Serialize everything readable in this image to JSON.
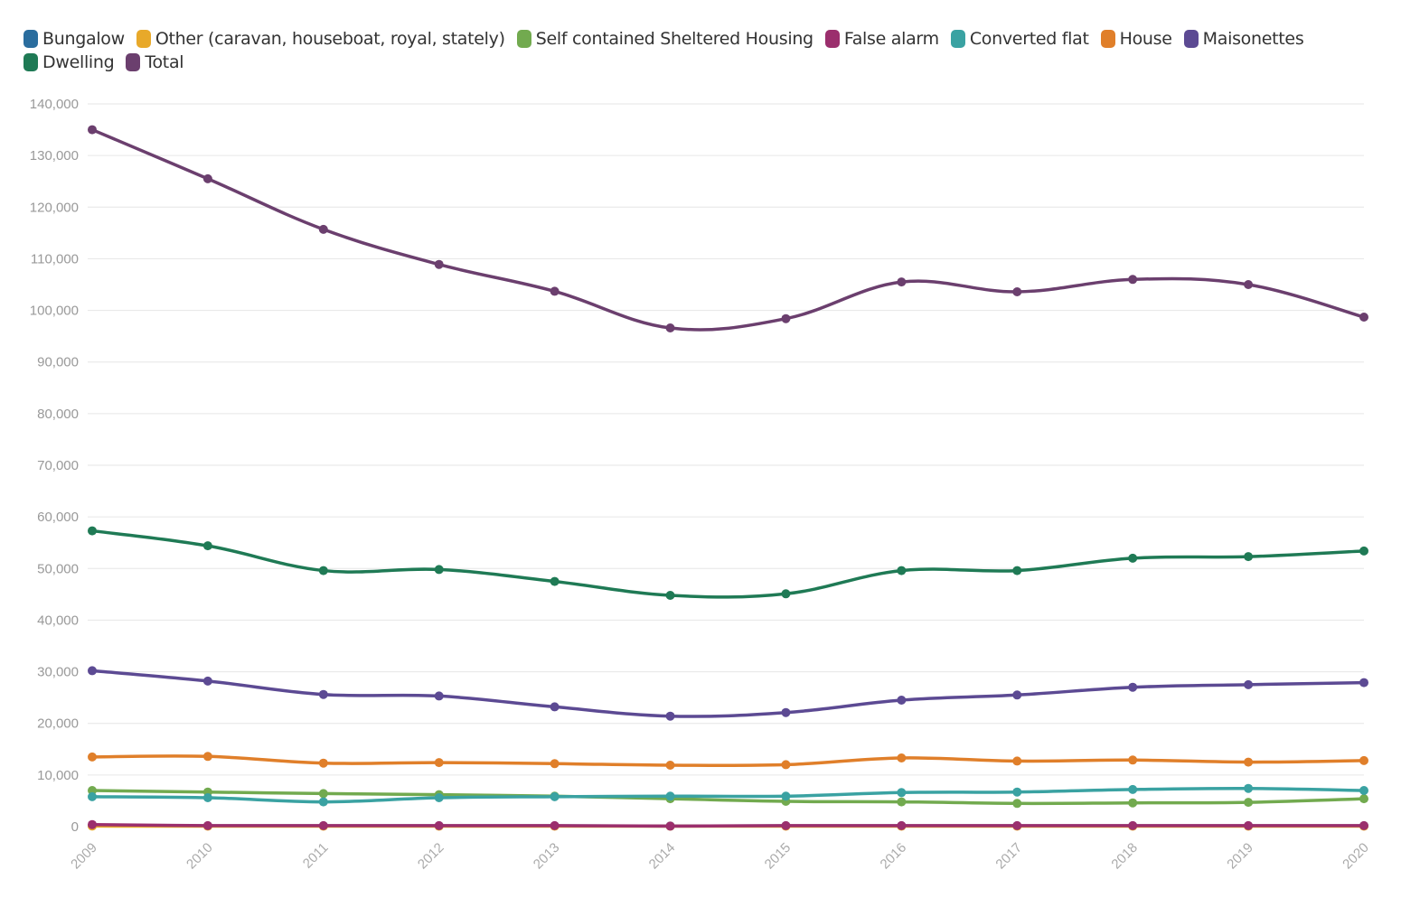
{
  "chart_data": {
    "type": "line",
    "title": "",
    "xlabel": "",
    "ylabel": "",
    "x": [
      "2009",
      "2010",
      "2011",
      "2012",
      "2013",
      "2014",
      "2015",
      "2016",
      "2017",
      "2018",
      "2019",
      "2020"
    ],
    "ylim": [
      0,
      140000
    ],
    "yticks": [
      0,
      10000,
      20000,
      30000,
      40000,
      50000,
      60000,
      70000,
      80000,
      90000,
      100000,
      110000,
      120000,
      130000,
      140000
    ],
    "ytick_labels": [
      "0",
      "10,000",
      "20,000",
      "30,000",
      "40,000",
      "50,000",
      "60,000",
      "70,000",
      "80,000",
      "90,000",
      "100,000",
      "110,000",
      "120,000",
      "130,000",
      "140,000"
    ],
    "grid": true,
    "legend_position": "top-left",
    "series": [
      {
        "name": "Bungalow",
        "color": "#2a6d9e",
        "values": [
          200,
          150,
          150,
          150,
          150,
          120,
          150,
          150,
          150,
          150,
          150,
          150
        ]
      },
      {
        "name": "Other (caravan, houseboat, royal, stately)",
        "color": "#e8a92a",
        "values": [
          100,
          80,
          80,
          80,
          80,
          80,
          80,
          80,
          80,
          80,
          80,
          80
        ]
      },
      {
        "name": "Self contained Sheltered Housing",
        "color": "#72aa4f",
        "values": [
          7000,
          6700,
          6400,
          6200,
          5900,
          5400,
          4900,
          4800,
          4500,
          4600,
          4700,
          5400
        ]
      },
      {
        "name": "False alarm",
        "color": "#9b2f6d",
        "values": [
          400,
          200,
          200,
          200,
          200,
          100,
          200,
          200,
          200,
          200,
          200,
          200
        ]
      },
      {
        "name": "Converted flat",
        "color": "#3aa2a2",
        "values": [
          5800,
          5600,
          4800,
          5600,
          5800,
          5900,
          5900,
          6600,
          6700,
          7200,
          7400,
          7000
        ]
      },
      {
        "name": "House",
        "color": "#e07f2a",
        "values": [
          13500,
          13600,
          12300,
          12400,
          12200,
          11900,
          12000,
          13300,
          12700,
          12900,
          12500,
          12800
        ]
      },
      {
        "name": "Maisonettes",
        "color": "#5c4a93",
        "values": [
          30200,
          28200,
          25600,
          25300,
          23200,
          21400,
          22100,
          24500,
          25500,
          27000,
          27500,
          27900
        ]
      },
      {
        "name": "Dwelling",
        "color": "#1f7a55",
        "values": [
          57300,
          54400,
          49600,
          49800,
          47500,
          44800,
          45100,
          49600,
          49600,
          52000,
          52300,
          53400
        ]
      },
      {
        "name": "Total",
        "color": "#6b3f6e",
        "values": [
          135000,
          125500,
          115700,
          108900,
          103700,
          96600,
          98400,
          105500,
          103600,
          106000,
          105000,
          98700
        ]
      }
    ]
  }
}
